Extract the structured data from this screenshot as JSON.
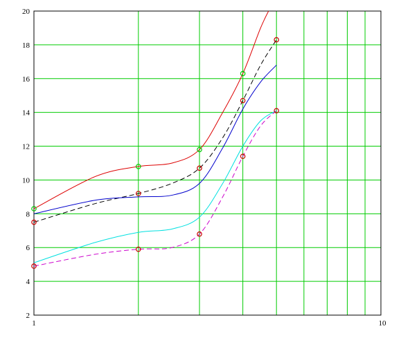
{
  "chart_data": {
    "type": "line",
    "title": "",
    "xlabel": "",
    "ylabel": "",
    "x_scale": "log",
    "xlim": [
      1,
      10
    ],
    "ylim": [
      2,
      20
    ],
    "grid": true,
    "grid_color": "#00cc00",
    "x_tick_labels": [
      "1",
      "10"
    ],
    "y_ticks": [
      2,
      4,
      6,
      8,
      10,
      12,
      14,
      16,
      18,
      20
    ],
    "y_tick_labels": [
      "2",
      "4",
      "6",
      "8",
      "10",
      "12",
      "14",
      "16",
      "18",
      "20"
    ],
    "x_grid_values": [
      2,
      3,
      4,
      5,
      6,
      7,
      8,
      9
    ],
    "series": [
      {
        "color": "#dd0000",
        "style": "solid",
        "points": [
          [
            1,
            8.3
          ],
          [
            1.5,
            10.2
          ],
          [
            2,
            10.8
          ],
          [
            2.5,
            11.0
          ],
          [
            3,
            11.8
          ],
          [
            3.5,
            14.0
          ],
          [
            4,
            16.3
          ],
          [
            4.5,
            19.0
          ],
          [
            4.8,
            20.2
          ]
        ]
      },
      {
        "color": "#000000",
        "style": "dashed",
        "points": [
          [
            1,
            7.5
          ],
          [
            1.5,
            8.6
          ],
          [
            2,
            9.2
          ],
          [
            2.5,
            9.8
          ],
          [
            3,
            10.7
          ],
          [
            3.5,
            12.5
          ],
          [
            4,
            14.7
          ],
          [
            4.5,
            16.8
          ],
          [
            5,
            18.3
          ]
        ]
      },
      {
        "color": "#0000cc",
        "style": "solid",
        "points": [
          [
            1,
            8.0
          ],
          [
            1.5,
            8.8
          ],
          [
            2,
            9.0
          ],
          [
            2.5,
            9.1
          ],
          [
            3,
            9.8
          ],
          [
            3.5,
            11.9
          ],
          [
            4,
            14.2
          ],
          [
            4.5,
            15.8
          ],
          [
            5,
            16.8
          ]
        ]
      },
      {
        "color": "#00e0e0",
        "style": "solid",
        "points": [
          [
            1,
            5.1
          ],
          [
            1.5,
            6.3
          ],
          [
            2,
            6.9
          ],
          [
            2.5,
            7.1
          ],
          [
            3,
            7.8
          ],
          [
            3.5,
            9.8
          ],
          [
            4,
            12.0
          ],
          [
            4.5,
            13.5
          ],
          [
            5,
            14.1
          ]
        ]
      },
      {
        "color": "#cc00cc",
        "style": "dashed",
        "points": [
          [
            1,
            4.9
          ],
          [
            1.5,
            5.6
          ],
          [
            2,
            5.9
          ],
          [
            2.5,
            6.0
          ],
          [
            3,
            6.8
          ],
          [
            3.5,
            9.0
          ],
          [
            4,
            11.4
          ],
          [
            4.5,
            13.2
          ],
          [
            5,
            14.1
          ]
        ]
      }
    ],
    "markers": [
      {
        "x": 1,
        "y": 8.3,
        "color": "#00cc00"
      },
      {
        "x": 2,
        "y": 10.8,
        "color": "#00cc00"
      },
      {
        "x": 3,
        "y": 11.8,
        "color": "#00cc00"
      },
      {
        "x": 4,
        "y": 16.3,
        "color": "#00cc00"
      },
      {
        "x": 1,
        "y": 7.5,
        "color": "#cc0000"
      },
      {
        "x": 2,
        "y": 9.2,
        "color": "#cc0000"
      },
      {
        "x": 3,
        "y": 10.7,
        "color": "#cc0000"
      },
      {
        "x": 4,
        "y": 14.7,
        "color": "#cc0000"
      },
      {
        "x": 5,
        "y": 18.3,
        "color": "#cc0000"
      },
      {
        "x": 1,
        "y": 4.9,
        "color": "#cc0000"
      },
      {
        "x": 2,
        "y": 5.9,
        "color": "#cc0000"
      },
      {
        "x": 3,
        "y": 6.8,
        "color": "#cc0000"
      },
      {
        "x": 4,
        "y": 11.4,
        "color": "#cc0000"
      },
      {
        "x": 5,
        "y": 14.1,
        "color": "#cc0000"
      }
    ]
  }
}
